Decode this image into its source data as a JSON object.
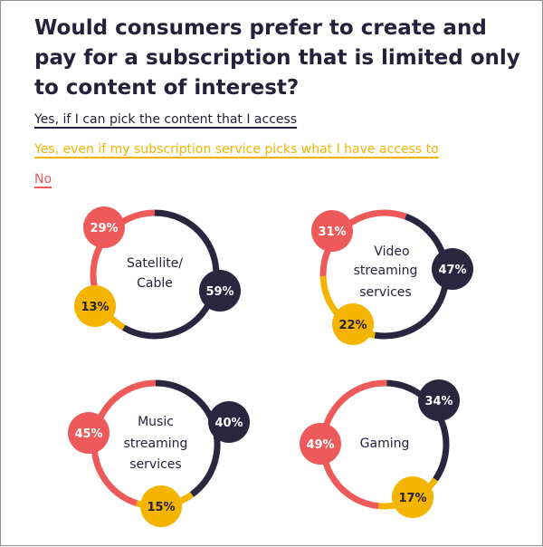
{
  "colors": {
    "title": "#26213b",
    "pick_own": "#2b2640",
    "service_picks": "#f4b400",
    "no": "#ee5a5a"
  },
  "chart_data": {
    "type": "donut",
    "title": "Would consumers prefer to create and pay for a subscription that is limited only to content of interest?",
    "legend": [
      {
        "key": "pick_own",
        "label": "Yes, if I can pick the content that I access",
        "color": "#2b2640"
      },
      {
        "key": "service_picks",
        "label": "Yes, even if my subscription service picks what I have access to",
        "color": "#f4b400"
      },
      {
        "key": "no",
        "label": "No",
        "color": "#ee5a5a"
      }
    ],
    "charts": [
      {
        "name": "Satellite/ Cable",
        "label_lines": [
          "Satellite/",
          "Cable"
        ],
        "values": {
          "pick_own": 59,
          "service_picks": 13,
          "no": 29
        },
        "labels": {
          "pick_own": "59%",
          "service_picks": "13%",
          "no": "29%"
        }
      },
      {
        "name": "Video streaming services",
        "label_lines": [
          "Video",
          "streaming",
          "services"
        ],
        "values": {
          "pick_own": 47,
          "service_picks": 22,
          "no": 31
        },
        "labels": {
          "pick_own": "47%",
          "service_picks": "22%",
          "no": "31%"
        }
      },
      {
        "name": "Music streaming services",
        "label_lines": [
          "Music",
          "streaming",
          "services"
        ],
        "values": {
          "pick_own": 40,
          "service_picks": 15,
          "no": 45
        },
        "labels": {
          "pick_own": "40%",
          "service_picks": "15%",
          "no": "45%"
        }
      },
      {
        "name": "Gaming",
        "label_lines": [
          "Gaming"
        ],
        "values": {
          "pick_own": 34,
          "service_picks": 17,
          "no": 49
        },
        "labels": {
          "pick_own": "34%",
          "service_picks": "17%",
          "no": "49%"
        }
      }
    ]
  }
}
